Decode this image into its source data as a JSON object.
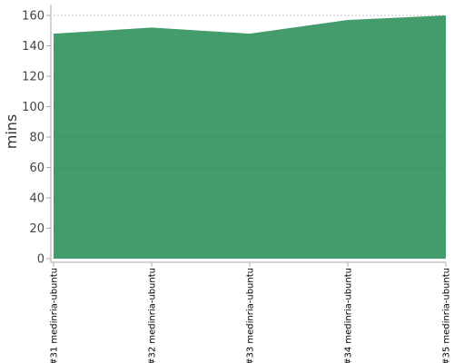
{
  "chart_data": {
    "type": "area",
    "categories": [
      "#31 medinria-ubuntu",
      "#32 medinria-ubuntu",
      "#33 medinria-ubuntu",
      "#34 medinria-ubuntu",
      "#35 medinria-ubuntu"
    ],
    "series": [
      {
        "values": [
          148,
          152,
          148,
          157,
          160
        ]
      }
    ],
    "ylabel": "mins",
    "ylim": [
      0,
      160
    ],
    "yticks": [
      0,
      20,
      40,
      60,
      80,
      100,
      120,
      140,
      160
    ],
    "grid": true,
    "legend": "none",
    "colors": {
      "fill": "#449b6c",
      "grid": "#333333",
      "axis": "#aaaaaa"
    }
  }
}
